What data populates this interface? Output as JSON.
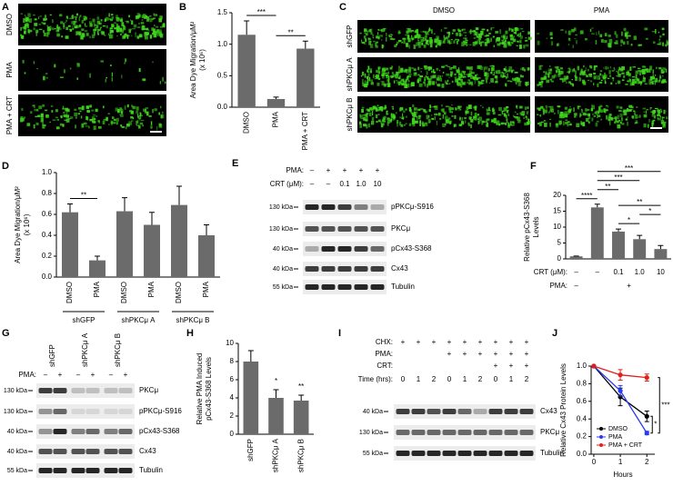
{
  "figure": {
    "A": {
      "letter": "A",
      "rows": [
        "DMSO",
        "PMA",
        "PMA + CRT"
      ]
    },
    "C": {
      "letter": "C",
      "columns": [
        "DMSO",
        "PMA"
      ],
      "rows": [
        "shGFP",
        "shPKCμ A",
        "shPKCμ B"
      ]
    },
    "E": {
      "letter": "E",
      "conditions": [
        {
          "label": "PMA:",
          "lanes": [
            "–",
            "+",
            "+",
            "+",
            "+"
          ]
        },
        {
          "label": "CRT (μM):",
          "lanes": [
            "–",
            "–",
            "0.1",
            "1.0",
            "10"
          ]
        }
      ],
      "bands": [
        {
          "marker": "130 kDa",
          "label": "pPKCμ-S916"
        },
        {
          "marker": "130 kDa",
          "label": "PKCμ"
        },
        {
          "marker": "40 kDa",
          "label": "pCx43-S368"
        },
        {
          "marker": "40 kDa",
          "label": "Cx43"
        },
        {
          "marker": "55 kDa",
          "label": "Tubulin"
        }
      ]
    },
    "G": {
      "letter": "G",
      "groups": [
        "shGFP",
        "shPKCμ A",
        "shPKCμ B"
      ],
      "conditions": [
        {
          "label": "PMA:",
          "lanes": [
            "–",
            "+",
            "–",
            "+",
            "–",
            "+"
          ]
        }
      ],
      "bands": [
        {
          "marker": "130 kDa",
          "label": "PKCμ"
        },
        {
          "marker": "130 kDa",
          "label": "pPKCμ-S916"
        },
        {
          "marker": "40 kDa",
          "label": "pCx43-S368"
        },
        {
          "marker": "40 kDa",
          "label": "Cx43"
        },
        {
          "marker": "55 kDa",
          "label": "Tubulin"
        }
      ]
    },
    "I": {
      "letter": "I",
      "conditions": [
        {
          "label": "CHX:",
          "lanes": [
            "+",
            "+",
            "+",
            "+",
            "+",
            "+",
            "+",
            "+",
            "+"
          ]
        },
        {
          "label": "PMA:",
          "lanes": [
            null,
            null,
            null,
            "+",
            "+",
            "+",
            "+",
            "+",
            "+"
          ]
        },
        {
          "label": "CRT:",
          "lanes": [
            null,
            null,
            null,
            null,
            null,
            null,
            "+",
            "+",
            "+"
          ]
        },
        {
          "label": "Time (hrs):",
          "lanes": [
            "0",
            "1",
            "2",
            "0",
            "1",
            "2",
            "0",
            "1",
            "2"
          ]
        }
      ],
      "bands": [
        {
          "marker": "40 kDa",
          "label": "Cx43"
        },
        {
          "marker": "130 kDa",
          "label": "PKCμ"
        },
        {
          "marker": "55 kDa",
          "label": "Tubulin"
        }
      ]
    }
  },
  "chart_data": [
    {
      "panel": "B",
      "type": "bar",
      "ylabel": [
        "Area Dye Migration/μM²",
        "(x 10⁶)"
      ],
      "categories": [
        "DMSO",
        "PMA",
        "PMA + CRT"
      ],
      "values": [
        1.15,
        0.13,
        0.93
      ],
      "errors": [
        0.22,
        0.03,
        0.12
      ],
      "color": "#6b6b6b",
      "ylim": [
        0,
        1.5
      ],
      "yticks": [
        {
          "value": 0,
          "label": "0.0"
        },
        {
          "value": 0.5,
          "label": "0.5"
        },
        {
          "value": 1,
          "label": "1.0"
        },
        {
          "value": 1.5,
          "label": "1.5"
        }
      ],
      "significance": [
        {
          "text": "**",
          "from": 1,
          "to": 2
        },
        {
          "text": "***",
          "from": 0,
          "to": 1
        }
      ]
    },
    {
      "panel": "D",
      "type": "bar",
      "ylabel": [
        "Area Dye Migration/μM²",
        "(x 10⁶)"
      ],
      "categories": [
        "DMSO",
        "PMA",
        "DMSO",
        "PMA",
        "DMSO",
        "PMA"
      ],
      "groups": [
        {
          "label": "shGFP",
          "from": 0,
          "to": 1
        },
        {
          "label": "shPKCμ A",
          "from": 2,
          "to": 3
        },
        {
          "label": "shPKCμ B",
          "from": 4,
          "to": 5
        }
      ],
      "values": [
        0.62,
        0.16,
        0.63,
        0.5,
        0.69,
        0.4
      ],
      "errors": [
        0.08,
        0.04,
        0.13,
        0.12,
        0.18,
        0.1
      ],
      "color": "#6b6b6b",
      "ylim": [
        0,
        1
      ],
      "yticks": [
        {
          "value": 0,
          "label": "0.0"
        },
        {
          "value": 0.2,
          "label": "0.2"
        },
        {
          "value": 0.4,
          "label": "0.4"
        },
        {
          "value": 0.6,
          "label": "0.6"
        },
        {
          "value": 0.8,
          "label": "0.8"
        },
        {
          "value": 1,
          "label": "1.0"
        }
      ],
      "significance": [
        {
          "text": "**",
          "from": 0,
          "to": 1
        }
      ]
    },
    {
      "panel": "F",
      "type": "bar",
      "ylabel": [
        "Relative pCx43-S368",
        "Levels"
      ],
      "conditions": [
        {
          "label": "CRT (μM):",
          "lanes": [
            "–",
            "–",
            "0.1",
            "1.0",
            "10"
          ]
        },
        {
          "label": "PMA:",
          "lanes": [
            "–",
            "+"
          ],
          "spans": [
            [
              0,
              0
            ],
            [
              1,
              4
            ]
          ]
        }
      ],
      "values": [
        0.8,
        16.2,
        8.6,
        6.2,
        3.1
      ],
      "errors": [
        0.1,
        1.0,
        0.8,
        1.2,
        1.1
      ],
      "color": "#6b6b6b",
      "ylim": [
        0,
        20
      ],
      "yticks": [
        0,
        5,
        10,
        15,
        20
      ],
      "significance": [
        {
          "text": "*",
          "from": 2,
          "to": 3
        },
        {
          "text": "*",
          "from": 3,
          "to": 4
        },
        {
          "text": "**",
          "from": 2,
          "to": 4
        },
        {
          "text": "****",
          "from": 0,
          "to": 1
        },
        {
          "text": "**",
          "from": 1,
          "to": 2
        },
        {
          "text": "***",
          "from": 1,
          "to": 3
        },
        {
          "text": "***",
          "from": 1,
          "to": 4
        }
      ]
    },
    {
      "panel": "H",
      "type": "bar",
      "ylabel": [
        "Relative PMA Induced",
        "pCx43-S368 Levels"
      ],
      "categories": [
        "shGFP",
        "shPKCμ A",
        "shPKCμ B"
      ],
      "values": [
        8.0,
        4.0,
        3.7
      ],
      "errors": [
        1.2,
        0.9,
        0.6
      ],
      "color": "#6b6b6b",
      "ylim": [
        0,
        10
      ],
      "yticks": [
        0,
        2,
        4,
        6,
        8,
        10
      ],
      "significance": [
        {
          "text": "*",
          "from": 1,
          "to": 1
        },
        {
          "text": "**",
          "from": 2,
          "to": 2
        }
      ]
    },
    {
      "panel": "J",
      "type": "line",
      "ylabel": "Relative Cx43 Protein Levels",
      "xlabel": "Hours",
      "x": [
        0,
        1,
        2
      ],
      "xlim": [
        -0.1,
        2.3
      ],
      "xticks": [
        0,
        1,
        2
      ],
      "ylim": [
        0,
        1
      ],
      "yticks": [
        {
          "value": 0,
          "label": "0.0"
        },
        {
          "value": 0.2,
          "label": "0.2"
        },
        {
          "value": 0.4,
          "label": "0.4"
        },
        {
          "value": 0.6,
          "label": "0.6"
        },
        {
          "value": 0.8,
          "label": "0.8"
        },
        {
          "value": 1,
          "label": "1.0"
        }
      ],
      "legend": "lower left",
      "series": [
        {
          "name": "DMSO",
          "color": "#000000",
          "values": [
            1,
            0.65,
            0.43
          ],
          "errors": [
            0,
            0.1,
            0.06
          ]
        },
        {
          "name": "PMA",
          "color": "#2a3cf0",
          "values": [
            1,
            0.72,
            0.24
          ],
          "errors": [
            0,
            0.06,
            0.02
          ]
        },
        {
          "name": "PMA + CRT",
          "color": "#e0201b",
          "values": [
            1,
            0.9,
            0.87
          ],
          "errors": [
            0,
            0.06,
            0.04
          ]
        }
      ],
      "significance": [
        {
          "text": "*",
          "series": [
            0,
            1
          ]
        },
        {
          "text": "***",
          "series": [
            2,
            1
          ]
        }
      ]
    }
  ]
}
